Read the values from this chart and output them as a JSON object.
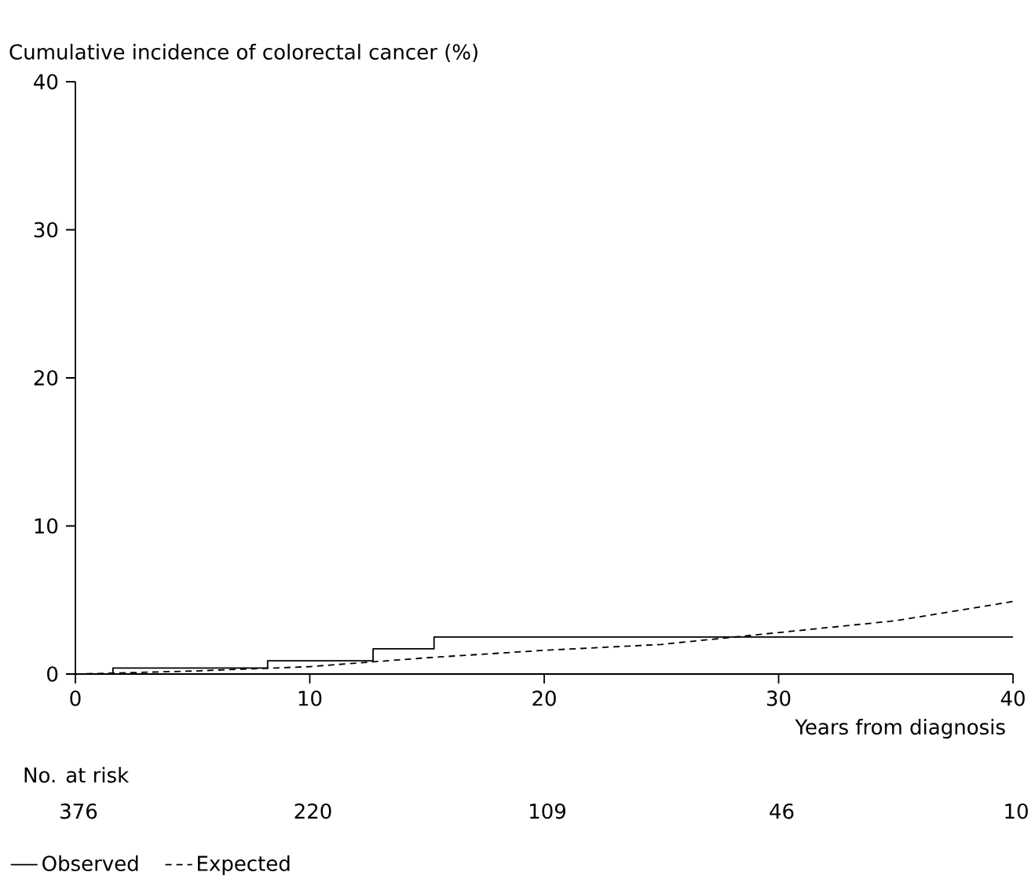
{
  "chart_data": {
    "type": "step",
    "ylabel": "Cumulative incidence of colorectal cancer (%)",
    "xlabel": "Years from diagnosis",
    "series": [
      {
        "name": "Observed",
        "color": "#000000",
        "line_style": "solid",
        "x": [
          0,
          1.6,
          8.2,
          12.7,
          15.3,
          40
        ],
        "values": [
          0,
          0.4,
          0.9,
          1.7,
          2.5,
          2.5
        ]
      },
      {
        "name": "Expected",
        "type": "line",
        "color": "#000000",
        "line_style": "dashed",
        "x": [
          0,
          5,
          10,
          15,
          20,
          25,
          30,
          35,
          40
        ],
        "values": [
          0,
          0.2,
          0.5,
          1.1,
          1.6,
          2.0,
          2.8,
          3.6,
          4.9
        ]
      }
    ],
    "xlim": [
      0,
      40
    ],
    "ylim": [
      0,
      40
    ],
    "xticks": [
      0,
      10,
      20,
      30,
      40
    ],
    "yticks": [
      0,
      10,
      20,
      30,
      40
    ],
    "grid": false,
    "legend": "bottom left",
    "marker": "none",
    "annotations": [
      "No. at risk",
      "376",
      "220",
      "109",
      "46",
      "10"
    ]
  }
}
